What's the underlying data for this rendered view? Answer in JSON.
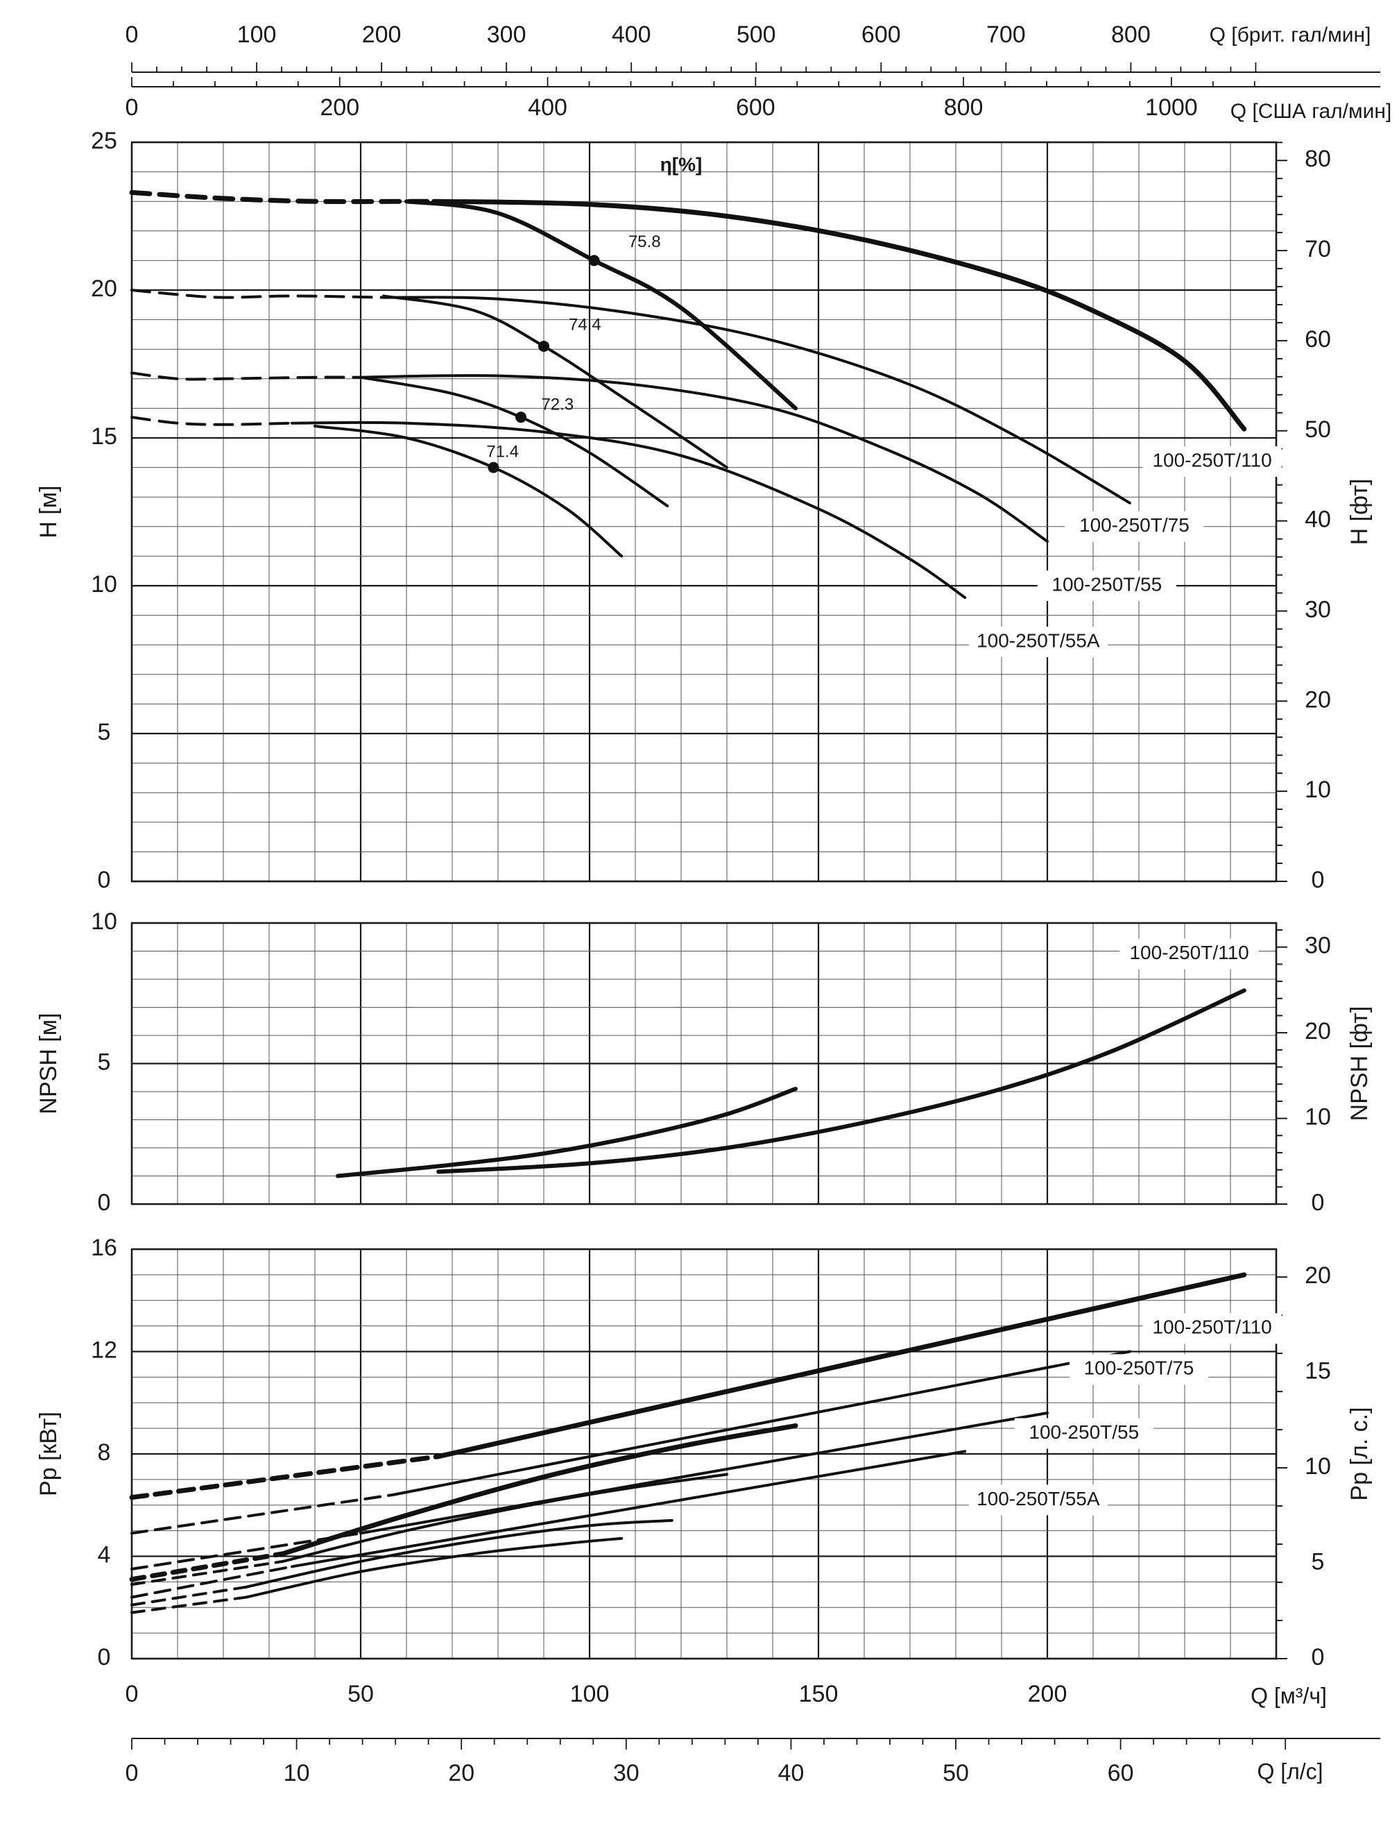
{
  "chart_data": [
    {
      "id": "head",
      "type": "line",
      "ylabel": "H [м]",
      "ylabel_right": "H [фт]",
      "ylim": [
        0,
        25
      ],
      "yticks": [
        0,
        5,
        10,
        15,
        20,
        25
      ],
      "ylim_right": [
        0,
        82.02
      ],
      "yticks_right": [
        0,
        10,
        20,
        30,
        40,
        50,
        60,
        70,
        80
      ],
      "xlim": [
        0,
        250
      ],
      "grid": true,
      "efficiency_title": "η[%]",
      "series": [
        {
          "name": "100-250T/110",
          "weight": "bold",
          "dashed": [
            [
              0,
              23.3
            ],
            [
              20,
              23.1
            ],
            [
              40,
              23.0
            ],
            [
              60,
              23.0
            ],
            [
              66,
              23.0
            ]
          ],
          "points": [
            [
              66,
              23.0
            ],
            [
              100,
              22.9
            ],
            [
              130,
              22.5
            ],
            [
              160,
              21.7
            ],
            [
              190,
              20.5
            ],
            [
              210,
              19.3
            ],
            [
              230,
              17.6
            ],
            [
              243,
              15.3
            ]
          ]
        },
        {
          "name": "100-250T/75",
          "weight": "normal",
          "dashed": [
            [
              0,
              20.0
            ],
            [
              10,
              19.85
            ],
            [
              20,
              19.75
            ],
            [
              35,
              19.8
            ],
            [
              55,
              19.75
            ]
          ],
          "points": [
            [
              55,
              19.75
            ],
            [
              80,
              19.7
            ],
            [
              110,
              19.2
            ],
            [
              140,
              18.3
            ],
            [
              170,
              16.8
            ],
            [
              195,
              14.9
            ],
            [
              218,
              12.8
            ]
          ]
        },
        {
          "name": "100-250T/55",
          "weight": "normal",
          "dashed": [
            [
              0,
              17.2
            ],
            [
              10,
              17.0
            ],
            [
              20,
              17.0
            ],
            [
              40,
              17.05
            ],
            [
              50,
              17.05
            ]
          ],
          "points": [
            [
              50,
              17.05
            ],
            [
              80,
              17.1
            ],
            [
              110,
              16.8
            ],
            [
              140,
              16.0
            ],
            [
              165,
              14.6
            ],
            [
              185,
              13.1
            ],
            [
              200,
              11.5
            ]
          ]
        },
        {
          "name": "100-250T/55A",
          "weight": "normal",
          "dashed": [
            [
              0,
              15.7
            ],
            [
              10,
              15.5
            ],
            [
              20,
              15.45
            ],
            [
              35,
              15.5
            ]
          ],
          "points": [
            [
              35,
              15.5
            ],
            [
              60,
              15.5
            ],
            [
              90,
              15.2
            ],
            [
              120,
              14.4
            ],
            [
              150,
              12.6
            ],
            [
              170,
              10.9
            ],
            [
              182,
              9.6
            ]
          ]
        }
      ],
      "efficiency_curves": [
        {
          "label": "75.8",
          "dot": [
            101,
            21.0
          ],
          "points": [
            [
              60,
              23.0
            ],
            [
              80,
              22.6
            ],
            [
              101,
              21.0
            ],
            [
              120,
              19.4
            ],
            [
              145,
              16.0
            ]
          ]
        },
        {
          "label": "74.4",
          "dot": [
            90,
            18.1
          ],
          "points": [
            [
              55,
              19.8
            ],
            [
              75,
              19.3
            ],
            [
              90,
              18.1
            ],
            [
              105,
              16.6
            ],
            [
              130,
              14.0
            ]
          ]
        },
        {
          "label": "72.3",
          "dot": [
            85,
            15.7
          ],
          "points": [
            [
              50,
              17.05
            ],
            [
              70,
              16.5
            ],
            [
              85,
              15.7
            ],
            [
              100,
              14.5
            ],
            [
              117,
              12.7
            ]
          ]
        },
        {
          "label": "71.4",
          "dot": [
            79,
            14.0
          ],
          "points": [
            [
              40,
              15.4
            ],
            [
              60,
              15.0
            ],
            [
              79,
              14.0
            ],
            [
              95,
              12.6
            ],
            [
              107,
              11.0
            ]
          ]
        }
      ]
    },
    {
      "id": "npsh",
      "type": "line",
      "ylabel": "NPSH [м]",
      "ylabel_right": "NPSH [фт]",
      "ylim": [
        0,
        10
      ],
      "yticks": [
        0,
        5,
        10
      ],
      "ylim_right": [
        0,
        32.81
      ],
      "yticks_right": [
        0,
        10,
        20,
        30
      ],
      "xlim": [
        0,
        250
      ],
      "grid": true,
      "legend_label": "100-250T/110",
      "series": [
        {
          "name": "",
          "points": [
            [
              45,
              1.0
            ],
            [
              70,
              1.4
            ],
            [
              90,
              1.8
            ],
            [
              110,
              2.4
            ],
            [
              130,
              3.2
            ],
            [
              145,
              4.1
            ]
          ]
        },
        {
          "name": "",
          "points": [
            [
              67,
              1.15
            ],
            [
              100,
              1.45
            ],
            [
              130,
              2.0
            ],
            [
              160,
              2.9
            ],
            [
              190,
              4.1
            ],
            [
              215,
              5.5
            ],
            [
              243,
              7.6
            ]
          ]
        }
      ]
    },
    {
      "id": "power",
      "type": "line",
      "ylabel": "Pp [кВт]",
      "ylabel_right": "Pp [л. с.]",
      "ylim": [
        0,
        16
      ],
      "yticks": [
        0,
        4,
        8,
        12,
        16
      ],
      "ylim_right": [
        0,
        21.46
      ],
      "yticks_right": [
        0,
        5,
        10,
        15,
        20
      ],
      "xlim": [
        0,
        250
      ],
      "xlabel": "Q [м³/ч]",
      "xticks": [
        0,
        50,
        100,
        150,
        200
      ],
      "grid": true,
      "series": [
        {
          "name": "100-250T/110",
          "weight": "bold",
          "dashed": [
            [
              0,
              6.3
            ],
            [
              67,
              7.9
            ]
          ],
          "points": [
            [
              67,
              7.9
            ],
            [
              243,
              15.0
            ]
          ]
        },
        {
          "name": "100-250T/75",
          "weight": "normal",
          "dashed": [
            [
              0,
              4.9
            ],
            [
              57,
              6.4
            ]
          ],
          "points": [
            [
              57,
              6.4
            ],
            [
              218,
              12.0
            ]
          ]
        },
        {
          "name": "100-250T/55",
          "weight": "normal",
          "dashed": [
            [
              0,
              3.5
            ],
            [
              50,
              4.9
            ]
          ],
          "points": [
            [
              50,
              4.9
            ],
            [
              200,
              9.6
            ]
          ]
        },
        {
          "name": "100-250T/55A",
          "weight": "normal",
          "dashed": [
            [
              0,
              2.4
            ],
            [
              35,
              3.6
            ]
          ],
          "points": [
            [
              35,
              3.6
            ],
            [
              182,
              8.1
            ]
          ]
        }
      ],
      "efficiency_power_curves": [
        {
          "weight": "bold",
          "dashed": [
            [
              0,
              3.1
            ],
            [
              33,
              4.1
            ]
          ],
          "points": [
            [
              33,
              4.1
            ],
            [
              60,
              5.6
            ],
            [
              90,
              7.1
            ],
            [
              120,
              8.3
            ],
            [
              145,
              9.1
            ]
          ]
        },
        {
          "weight": "normal",
          "dashed": [
            [
              0,
              2.9
            ],
            [
              33,
              3.8
            ]
          ],
          "points": [
            [
              33,
              3.8
            ],
            [
              60,
              5.0
            ],
            [
              90,
              6.1
            ],
            [
              110,
              6.7
            ],
            [
              130,
              7.2
            ]
          ]
        },
        {
          "weight": "normal",
          "dashed": [
            [
              0,
              2.1
            ],
            [
              25,
              2.8
            ]
          ],
          "points": [
            [
              25,
              2.8
            ],
            [
              50,
              3.8
            ],
            [
              75,
              4.6
            ],
            [
              100,
              5.2
            ],
            [
              118,
              5.4
            ]
          ]
        },
        {
          "weight": "normal",
          "dashed": [
            [
              0,
              1.8
            ],
            [
              25,
              2.4
            ]
          ],
          "points": [
            [
              25,
              2.4
            ],
            [
              50,
              3.4
            ],
            [
              75,
              4.1
            ],
            [
              95,
              4.5
            ],
            [
              107,
              4.7
            ]
          ]
        }
      ]
    }
  ],
  "top_axes": [
    {
      "label": "Q [брит. гал/мин]",
      "ticks": [
        "0",
        "100",
        "200",
        "300",
        "400",
        "500",
        "600",
        "700",
        "800"
      ],
      "values": [
        0,
        100,
        200,
        300,
        400,
        500,
        600,
        700,
        800
      ]
    },
    {
      "label": "Q [США гал/мин]",
      "ticks": [
        "0",
        "200",
        "400",
        "600",
        "800",
        "1000"
      ],
      "values": [
        0,
        200,
        400,
        600,
        800,
        1000
      ]
    }
  ],
  "bottom_axis_ls": {
    "label": "Q [л/с]",
    "ticks": [
      "0",
      "10",
      "20",
      "30",
      "40",
      "50",
      "60"
    ],
    "values": [
      0,
      10,
      20,
      30,
      40,
      50,
      60
    ]
  },
  "curve_labels": {
    "head": [
      "100-250T/110",
      "100-250T/75",
      "100-250T/55",
      "100-250T/55A"
    ],
    "power": [
      "100-250T/110",
      "100-250T/75",
      "100-250T/55",
      "100-250T/55A"
    ]
  }
}
